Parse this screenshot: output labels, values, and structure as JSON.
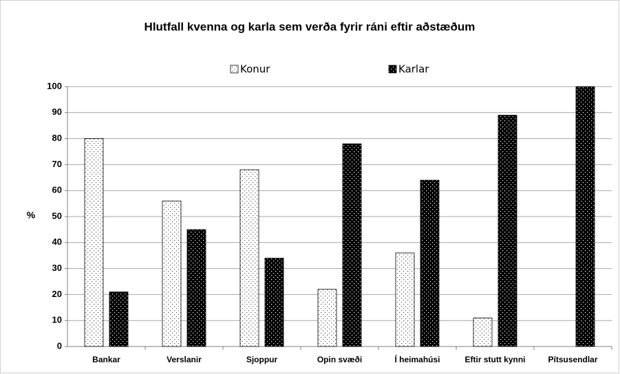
{
  "chart_data": {
    "type": "bar",
    "title": "Hlutfall kvenna og karla sem verða fyrir ráni eftir aðstæðum",
    "y_label": "%",
    "categories": [
      "Bankar",
      "Verslanir",
      "Sjoppur",
      "Opin svæði",
      "Í heimahúsi",
      "Eftir stutt kynni",
      "Pítsusendlar"
    ],
    "series": [
      {
        "name": "Konur",
        "color": "#ffffff",
        "values": [
          80,
          56,
          68,
          22,
          36,
          11,
          0
        ]
      },
      {
        "name": "Karlar",
        "color": "#000000",
        "values": [
          21,
          45,
          34,
          78,
          64,
          89,
          100
        ]
      }
    ],
    "ylim": [
      0,
      100
    ],
    "yticks": [
      0,
      10,
      20,
      30,
      40,
      50,
      60,
      70,
      80,
      90,
      100
    ],
    "grid": true,
    "legend": "top"
  }
}
